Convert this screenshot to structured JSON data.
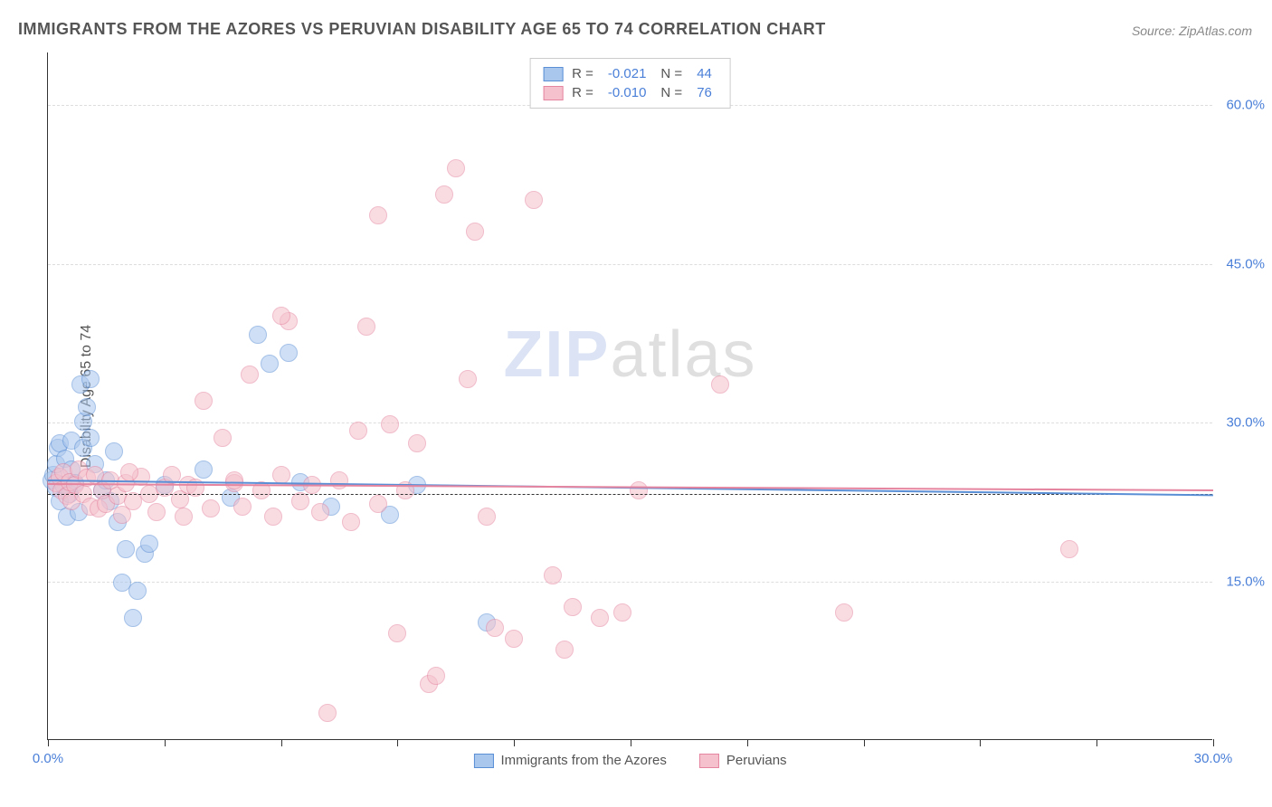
{
  "title": "IMMIGRANTS FROM THE AZORES VS PERUVIAN DISABILITY AGE 65 TO 74 CORRELATION CHART",
  "source_label": "Source: ZipAtlas.com",
  "ylabel": "Disability Age 65 to 74",
  "watermark_bold": "ZIP",
  "watermark_rest": "atlas",
  "chart": {
    "type": "scatter",
    "background_color": "#ffffff",
    "grid_color": "#dddddd",
    "axis_color": "#333333",
    "xlim": [
      0,
      30
    ],
    "ylim": [
      0,
      65
    ],
    "ytick_values": [
      15,
      30,
      45,
      60
    ],
    "ytick_labels": [
      "15.0%",
      "30.0%",
      "45.0%",
      "60.0%"
    ],
    "xtick_values": [
      0,
      3,
      6,
      9,
      12,
      15,
      18,
      21,
      24,
      27,
      30
    ],
    "xtick_labels_shown": {
      "0": "0.0%",
      "30": "30.0%"
    },
    "marker_radius": 10,
    "marker_opacity": 0.55,
    "series": [
      {
        "name": "Immigrants from the Azores",
        "fill_color": "#a9c6ed",
        "border_color": "#5a8fd6",
        "R": "-0.021",
        "N": "44",
        "trend_start_y": 24.6,
        "trend_end_y": 23.2,
        "points": [
          [
            0.1,
            24.5
          ],
          [
            0.15,
            25.0
          ],
          [
            0.2,
            23.8
          ],
          [
            0.2,
            26.0
          ],
          [
            0.25,
            27.5
          ],
          [
            0.3,
            28.0
          ],
          [
            0.3,
            22.5
          ],
          [
            0.4,
            24.0
          ],
          [
            0.45,
            26.5
          ],
          [
            0.5,
            21.0
          ],
          [
            0.55,
            23.2
          ],
          [
            0.6,
            25.5
          ],
          [
            0.6,
            28.2
          ],
          [
            0.7,
            24.2
          ],
          [
            0.8,
            21.5
          ],
          [
            0.85,
            33.5
          ],
          [
            0.9,
            30.0
          ],
          [
            0.9,
            27.5
          ],
          [
            1.0,
            31.4
          ],
          [
            1.1,
            34.0
          ],
          [
            1.1,
            28.5
          ],
          [
            1.2,
            26.0
          ],
          [
            1.4,
            23.5
          ],
          [
            1.5,
            24.5
          ],
          [
            1.6,
            22.5
          ],
          [
            1.7,
            27.2
          ],
          [
            1.8,
            20.5
          ],
          [
            1.9,
            14.8
          ],
          [
            2.0,
            18.0
          ],
          [
            2.2,
            11.5
          ],
          [
            2.3,
            14.0
          ],
          [
            2.5,
            17.5
          ],
          [
            2.6,
            18.5
          ],
          [
            3.0,
            24.0
          ],
          [
            4.0,
            25.5
          ],
          [
            4.7,
            22.8
          ],
          [
            5.4,
            38.2
          ],
          [
            5.7,
            35.5
          ],
          [
            6.2,
            36.5
          ],
          [
            6.5,
            24.3
          ],
          [
            7.3,
            22.0
          ],
          [
            8.8,
            21.2
          ],
          [
            9.5,
            24.0
          ],
          [
            11.3,
            11.0
          ]
        ]
      },
      {
        "name": "Peruvians",
        "fill_color": "#f5c1cc",
        "border_color": "#e585a0",
        "R": "-0.010",
        "N": "76",
        "trend_start_y": 24.3,
        "trend_end_y": 23.7,
        "points": [
          [
            0.2,
            24.2
          ],
          [
            0.3,
            24.8
          ],
          [
            0.35,
            23.5
          ],
          [
            0.4,
            25.2
          ],
          [
            0.5,
            23.0
          ],
          [
            0.55,
            24.3
          ],
          [
            0.6,
            22.5
          ],
          [
            0.7,
            24.0
          ],
          [
            0.8,
            25.5
          ],
          [
            0.9,
            23.2
          ],
          [
            1.0,
            24.7
          ],
          [
            1.1,
            22.0
          ],
          [
            1.2,
            25.0
          ],
          [
            1.3,
            21.8
          ],
          [
            1.4,
            23.5
          ],
          [
            1.5,
            22.2
          ],
          [
            1.6,
            24.5
          ],
          [
            1.8,
            23.0
          ],
          [
            1.9,
            21.2
          ],
          [
            2.0,
            24.2
          ],
          [
            2.2,
            22.5
          ],
          [
            2.4,
            24.8
          ],
          [
            2.6,
            23.2
          ],
          [
            2.8,
            21.5
          ],
          [
            3.0,
            23.8
          ],
          [
            3.2,
            25.0
          ],
          [
            3.4,
            22.7
          ],
          [
            3.6,
            24.0
          ],
          [
            3.8,
            23.8
          ],
          [
            4.0,
            32.0
          ],
          [
            4.2,
            21.8
          ],
          [
            4.5,
            28.5
          ],
          [
            4.8,
            24.2
          ],
          [
            5.0,
            22.0
          ],
          [
            5.2,
            34.5
          ],
          [
            5.5,
            23.5
          ],
          [
            5.8,
            21.0
          ],
          [
            6.0,
            25.0
          ],
          [
            6.2,
            39.5
          ],
          [
            6.5,
            22.5
          ],
          [
            6.8,
            24.0
          ],
          [
            7.0,
            21.5
          ],
          [
            7.2,
            2.5
          ],
          [
            7.5,
            24.5
          ],
          [
            7.8,
            20.5
          ],
          [
            8.0,
            29.2
          ],
          [
            8.2,
            39.0
          ],
          [
            8.5,
            22.2
          ],
          [
            8.5,
            49.5
          ],
          [
            8.8,
            29.8
          ],
          [
            9.0,
            10.0
          ],
          [
            9.2,
            23.5
          ],
          [
            9.5,
            28.0
          ],
          [
            9.8,
            5.2
          ],
          [
            10.0,
            6.0
          ],
          [
            10.2,
            51.5
          ],
          [
            10.5,
            54.0
          ],
          [
            10.8,
            34.0
          ],
          [
            11.0,
            48.0
          ],
          [
            11.3,
            21.0
          ],
          [
            11.5,
            10.5
          ],
          [
            12.0,
            9.5
          ],
          [
            12.5,
            51.0
          ],
          [
            13.0,
            15.5
          ],
          [
            13.3,
            8.5
          ],
          [
            13.5,
            12.5
          ],
          [
            14.2,
            11.5
          ],
          [
            14.8,
            12.0
          ],
          [
            15.2,
            23.5
          ],
          [
            17.3,
            33.5
          ],
          [
            20.5,
            12.0
          ],
          [
            26.3,
            18.0
          ],
          [
            6.0,
            40.0
          ],
          [
            4.8,
            24.5
          ],
          [
            3.5,
            21.0
          ],
          [
            2.1,
            25.2
          ]
        ]
      }
    ]
  }
}
